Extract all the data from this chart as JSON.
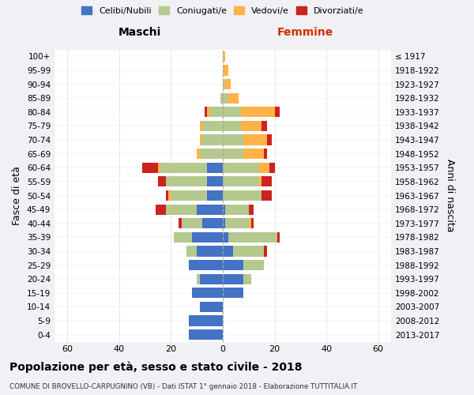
{
  "age_groups": [
    "0-4",
    "5-9",
    "10-14",
    "15-19",
    "20-24",
    "25-29",
    "30-34",
    "35-39",
    "40-44",
    "45-49",
    "50-54",
    "55-59",
    "60-64",
    "65-69",
    "70-74",
    "75-79",
    "80-84",
    "85-89",
    "90-94",
    "95-99",
    "100+"
  ],
  "birth_years": [
    "2013-2017",
    "2008-2012",
    "2003-2007",
    "1998-2002",
    "1993-1997",
    "1988-1992",
    "1983-1987",
    "1978-1982",
    "1973-1977",
    "1968-1972",
    "1963-1967",
    "1958-1962",
    "1953-1957",
    "1948-1952",
    "1943-1947",
    "1938-1942",
    "1933-1937",
    "1928-1932",
    "1923-1927",
    "1918-1922",
    "≤ 1917"
  ],
  "males": {
    "celibi": [
      13,
      13,
      9,
      12,
      9,
      13,
      10,
      12,
      8,
      10,
      6,
      6,
      6,
      0,
      0,
      0,
      0,
      0,
      0,
      0,
      0
    ],
    "coniugati": [
      0,
      0,
      0,
      0,
      1,
      0,
      4,
      7,
      8,
      12,
      14,
      16,
      18,
      9,
      8,
      8,
      5,
      1,
      0,
      0,
      0
    ],
    "vedovi": [
      0,
      0,
      0,
      0,
      0,
      0,
      0,
      0,
      0,
      0,
      1,
      0,
      1,
      1,
      1,
      1,
      1,
      0,
      0,
      0,
      0
    ],
    "divorziati": [
      0,
      0,
      0,
      0,
      0,
      0,
      0,
      0,
      1,
      4,
      1,
      3,
      6,
      0,
      0,
      0,
      1,
      0,
      0,
      0,
      0
    ]
  },
  "females": {
    "nubili": [
      0,
      0,
      0,
      8,
      8,
      8,
      4,
      2,
      1,
      1,
      0,
      0,
      0,
      0,
      0,
      0,
      0,
      0,
      0,
      0,
      0
    ],
    "coniugate": [
      0,
      0,
      0,
      0,
      3,
      8,
      12,
      19,
      9,
      9,
      15,
      14,
      14,
      8,
      8,
      7,
      7,
      2,
      1,
      0,
      0
    ],
    "vedove": [
      0,
      0,
      0,
      0,
      0,
      0,
      0,
      0,
      1,
      0,
      0,
      1,
      4,
      8,
      9,
      8,
      13,
      4,
      2,
      2,
      1
    ],
    "divorziate": [
      0,
      0,
      0,
      0,
      0,
      0,
      1,
      1,
      1,
      2,
      4,
      4,
      2,
      1,
      2,
      2,
      2,
      0,
      0,
      0,
      0
    ]
  },
  "colors": {
    "celibi": "#4472C4",
    "coniugati": "#B5C98E",
    "vedovi": "#FFB347",
    "divorziati": "#CC2222"
  },
  "xlim": 65,
  "title": "Popolazione per età, sesso e stato civile - 2018",
  "subtitle": "COMUNE DI BROVELLO-CARPUGNINO (VB) - Dati ISTAT 1° gennaio 2018 - Elaborazione TUTTITALIA.IT",
  "ylabel_left": "Fasce di età",
  "ylabel_right": "Anni di nascita",
  "header_left": "Maschi",
  "header_right": "Femmine",
  "background_color": "#f0f0f5",
  "plot_background": "#ffffff"
}
